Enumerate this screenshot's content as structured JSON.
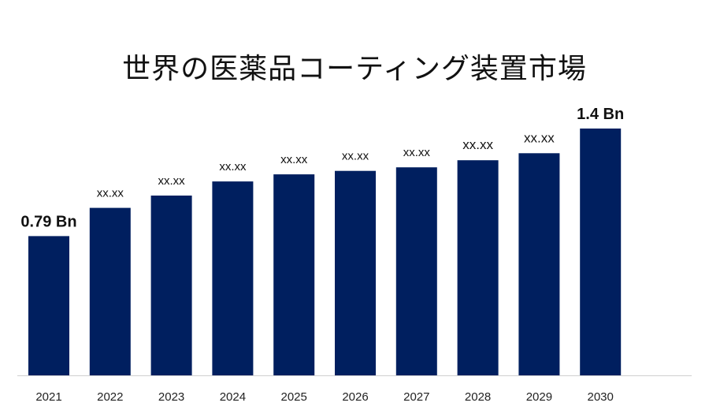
{
  "chart_data": {
    "type": "bar",
    "title": "世界の医薬品コーティング装置市場",
    "categories": [
      "2021",
      "2022",
      "2023",
      "2024",
      "2025",
      "2026",
      "2027",
      "2028",
      "2029",
      "2030"
    ],
    "values": [
      0.79,
      0.95,
      1.02,
      1.1,
      1.14,
      1.16,
      1.18,
      1.22,
      1.26,
      1.4
    ],
    "data_labels": [
      "0.79 Bn",
      "xx.xx",
      "xx.xx",
      "xx.xx",
      "xx.xx",
      "xx.xx",
      "xx.xx",
      "xx.xx",
      "xx.xx",
      "1.4 Bn"
    ],
    "xlabel": "",
    "ylabel": "",
    "ylim": [
      0,
      1.6
    ],
    "grid": false,
    "legend": "none",
    "bar_color": "#001f5f"
  }
}
